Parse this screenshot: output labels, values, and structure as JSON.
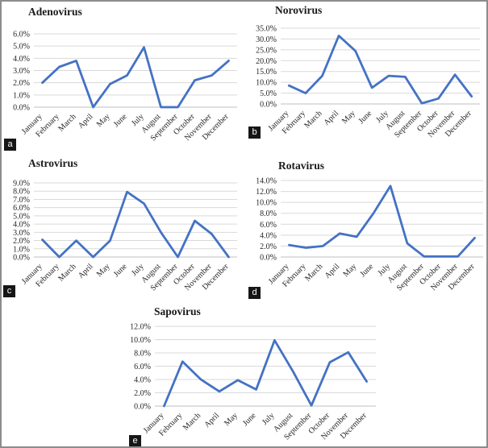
{
  "figure": {
    "background": "#ffffff",
    "border_color": "#8c8c8c",
    "panels": [
      {
        "letter": "a"
      },
      {
        "letter": "b"
      },
      {
        "letter": "c"
      },
      {
        "letter": "d"
      },
      {
        "letter": "e"
      }
    ]
  },
  "style": {
    "line_color": "#4472C4",
    "gridline_color": "#d9d9d9",
    "axis_color": "#bfbfbf",
    "text_color": "#262626"
  },
  "chart_data": [
    {
      "type": "line",
      "title": "Adenovirus",
      "panel_letter": "a",
      "categories": [
        "January",
        "February",
        "March",
        "April",
        "May",
        "June",
        "July",
        "August",
        "September",
        "October",
        "November",
        "December"
      ],
      "values": [
        2.0,
        3.3,
        3.8,
        0.0,
        1.9,
        2.6,
        4.9,
        0.0,
        0.0,
        2.2,
        2.6,
        3.8
      ],
      "ylim": [
        0,
        6
      ],
      "ytick_labels": [
        "0.0%",
        "1.0%",
        "2.0%",
        "3.0%",
        "4.0%",
        "5.0%",
        "6.0%"
      ],
      "grid": true,
      "legend": "none",
      "line_color": "#4472C4"
    },
    {
      "type": "line",
      "title": "Norovirus",
      "panel_letter": "b",
      "categories": [
        "January",
        "February",
        "March",
        "April",
        "May",
        "June",
        "July",
        "August",
        "September",
        "October",
        "November",
        "December"
      ],
      "values": [
        8.5,
        5.0,
        13.0,
        31.5,
        24.5,
        7.5,
        13.0,
        12.5,
        0.3,
        2.5,
        13.5,
        3.5
      ],
      "ylim": [
        0,
        35
      ],
      "ytick_labels": [
        "0.0%",
        "5.0%",
        "10.0%",
        "15.0%",
        "20.0%",
        "25.0%",
        "30.0%",
        "35.0%"
      ],
      "grid": true,
      "legend": "none",
      "line_color": "#4472C4"
    },
    {
      "type": "line",
      "title": "Astrovirus",
      "panel_letter": "c",
      "categories": [
        "January",
        "February",
        "March",
        "April",
        "May",
        "June",
        "July",
        "August",
        "September",
        "October",
        "November",
        "December"
      ],
      "values": [
        2.1,
        0.0,
        2.0,
        0.0,
        2.0,
        7.9,
        6.5,
        3.0,
        0.0,
        4.4,
        2.8,
        0.0
      ],
      "ylim": [
        0,
        9
      ],
      "ytick_labels": [
        "0.0%",
        "1.0%",
        "2.0%",
        "3.0%",
        "4.0%",
        "5.0%",
        "6.0%",
        "7.0%",
        "8.0%",
        "9.0%"
      ],
      "grid": true,
      "legend": "none",
      "line_color": "#4472C4"
    },
    {
      "type": "line",
      "title": "Rotavirus",
      "panel_letter": "d",
      "categories": [
        "January",
        "February",
        "March",
        "April",
        "May",
        "June",
        "July",
        "August",
        "September",
        "October",
        "November",
        "December"
      ],
      "values": [
        2.2,
        1.7,
        2.0,
        4.3,
        3.7,
        8.0,
        13.0,
        2.5,
        0.1,
        0.1,
        0.1,
        3.5
      ],
      "ylim": [
        0,
        14
      ],
      "ytick_labels": [
        "0.0%",
        "2.0%",
        "4.0%",
        "6.0%",
        "8.0%",
        "10.0%",
        "12.0%",
        "14.0%"
      ],
      "grid": true,
      "legend": "none",
      "line_color": "#4472C4"
    },
    {
      "type": "line",
      "title": "Sapovirus",
      "panel_letter": "e",
      "categories": [
        "January",
        "February",
        "March",
        "April",
        "May",
        "June",
        "July",
        "August",
        "September",
        "October",
        "November",
        "December"
      ],
      "values": [
        0.0,
        6.7,
        4.0,
        2.2,
        3.9,
        2.5,
        9.9,
        5.2,
        0.1,
        6.6,
        8.1,
        3.7
      ],
      "ylim": [
        0,
        12
      ],
      "ytick_labels": [
        "0.0%",
        "2.0%",
        "4.0%",
        "6.0%",
        "8.0%",
        "10.0%",
        "12.0%"
      ],
      "grid": true,
      "legend": "none",
      "line_color": "#4472C4"
    }
  ]
}
